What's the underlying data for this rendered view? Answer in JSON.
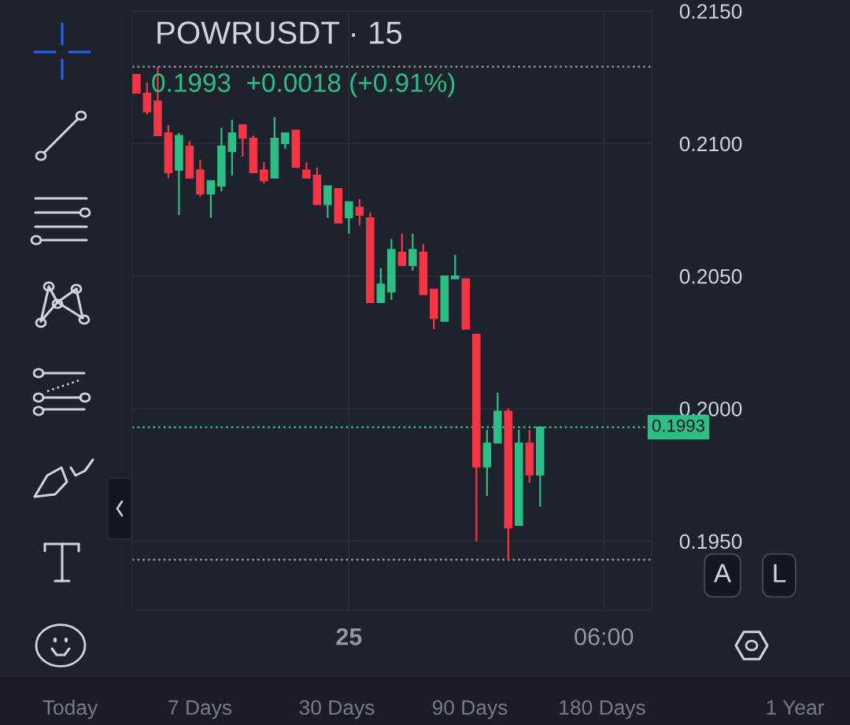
{
  "chart_data": {
    "type": "candlestick",
    "title": "POWRUSDT · 15",
    "subtitle": "0.1993  +0.0018 (+0.91%)",
    "categories": [
      null,
      null,
      null,
      null,
      null,
      null,
      null,
      null,
      null,
      null,
      null,
      null,
      null,
      null,
      null,
      null,
      null,
      null,
      null,
      null,
      "25",
      null,
      null,
      null,
      null,
      null,
      null,
      null,
      null,
      null,
      null,
      null,
      null,
      null,
      null,
      null,
      null,
      null,
      null,
      null,
      null,
      null,
      null,
      null,
      "06:00",
      null,
      null,
      null,
      null
    ],
    "ohlc": [
      [
        0.2126,
        0.2126,
        0.2119,
        0.2119
      ],
      [
        0.2119,
        0.2123,
        0.2111,
        0.2112
      ],
      [
        0.2116,
        0.2129,
        0.2103,
        0.2103
      ],
      [
        0.2104,
        0.2107,
        0.2087,
        0.2089
      ],
      [
        0.209,
        0.2104,
        0.2073,
        0.2103
      ],
      [
        0.2099,
        0.2101,
        0.2087,
        0.2087
      ],
      [
        0.209,
        0.2094,
        0.208,
        0.2081
      ],
      [
        0.2081,
        0.2086,
        0.2072,
        0.2086
      ],
      [
        0.2084,
        0.2106,
        0.2082,
        0.2099
      ],
      [
        0.2097,
        0.2109,
        0.2088,
        0.2104
      ],
      [
        0.2107,
        0.2107,
        0.2095,
        0.2102
      ],
      [
        0.2102,
        0.2103,
        0.2089,
        0.2089
      ],
      [
        0.209,
        0.2093,
        0.2085,
        0.2086
      ],
      [
        0.2087,
        0.211,
        0.2087,
        0.2102
      ],
      [
        0.21,
        0.2104,
        0.2098,
        0.2104
      ],
      [
        0.2105,
        0.2105,
        0.2091,
        0.2091
      ],
      [
        0.209,
        0.2093,
        0.2087,
        0.2087
      ],
      [
        0.2088,
        0.2091,
        0.2077,
        0.2077
      ],
      [
        0.2077,
        0.2084,
        0.2072,
        0.2084
      ],
      [
        0.2083,
        0.2083,
        0.207,
        0.207
      ],
      [
        0.2072,
        0.2078,
        0.2066,
        0.2078
      ],
      [
        0.2076,
        0.2079,
        0.2069,
        0.2073
      ],
      [
        0.2072,
        0.2074,
        0.204,
        0.204
      ],
      [
        0.204,
        0.2053,
        0.204,
        0.2047
      ],
      [
        0.2044,
        0.2064,
        0.2041,
        0.206
      ],
      [
        0.2059,
        0.2066,
        0.2054,
        0.2054
      ],
      [
        0.2054,
        0.2066,
        0.2052,
        0.206
      ],
      [
        0.2059,
        0.2062,
        0.2043,
        0.2043
      ],
      [
        0.2045,
        0.2045,
        0.203,
        0.2034
      ],
      [
        0.2033,
        0.205,
        0.2033,
        0.205
      ],
      [
        0.2049,
        0.2058,
        0.2049,
        0.205
      ],
      [
        0.2049,
        0.2049,
        0.203,
        0.203
      ],
      [
        0.2028,
        0.2028,
        0.195,
        0.1978
      ],
      [
        0.1978,
        0.1992,
        0.1967,
        0.1987
      ],
      [
        0.1987,
        0.2006,
        0.1987,
        0.1999
      ],
      [
        0.1999,
        0.2,
        0.1943,
        0.1955
      ],
      [
        0.1956,
        0.1992,
        0.1956,
        0.1987
      ],
      [
        0.1987,
        0.1992,
        0.1972,
        0.1975
      ],
      [
        0.1975,
        0.1993,
        0.1963,
        0.1993
      ],
      null,
      null,
      null,
      null,
      null,
      null,
      null,
      null,
      null,
      null
    ],
    "colors": [
      "#f23645",
      "#f23645",
      "#f23645",
      "#f23645",
      "#2ebd85",
      "#f23645",
      "#f23645",
      "#2ebd85",
      "#2ebd85",
      "#2ebd85",
      "#f23645",
      "#f23645",
      "#f23645",
      "#2ebd85",
      "#2ebd85",
      "#f23645",
      "#f23645",
      "#f23645",
      "#2ebd85",
      "#f23645",
      "#2ebd85",
      "#f23645",
      "#f23645",
      "#2ebd85",
      "#2ebd85",
      "#f23645",
      "#2ebd85",
      "#f23645",
      "#f23645",
      "#2ebd85",
      "#2ebd85",
      "#f23645",
      "#f23645",
      "#2ebd85",
      "#2ebd85",
      "#f23645",
      "#2ebd85",
      "#f23645",
      "#2ebd85",
      null,
      null,
      null,
      null,
      null,
      null,
      null,
      null,
      null,
      null
    ],
    "ylim": [
      0.1924,
      0.215
    ],
    "yticks": [
      {
        "value": 0.195,
        "label": "0.1950"
      },
      {
        "value": 0.2,
        "label": "0.2000"
      },
      {
        "value": 0.205,
        "label": "0.2050"
      },
      {
        "value": 0.21,
        "label": "0.2100"
      },
      {
        "value": 0.215,
        "label": "0.2150"
      }
    ],
    "grid": true,
    "ref_lines": [
      {
        "axis": "y",
        "value": 0.1993,
        "label": "0.1993",
        "color": "#2ebd85",
        "line_style": "dotted"
      },
      {
        "axis": "y",
        "value": 0.2129,
        "label": null,
        "color": "#9598a1",
        "line_style": "dotted"
      },
      {
        "axis": "y",
        "value": 0.1943,
        "label": null,
        "color": "#9598a1",
        "line_style": "dotted"
      }
    ],
    "annotations": [
      "Today",
      "7 Days",
      "30 Days",
      "90 Days",
      "180 Days",
      "1 Year",
      "A",
      "L"
    ]
  }
}
